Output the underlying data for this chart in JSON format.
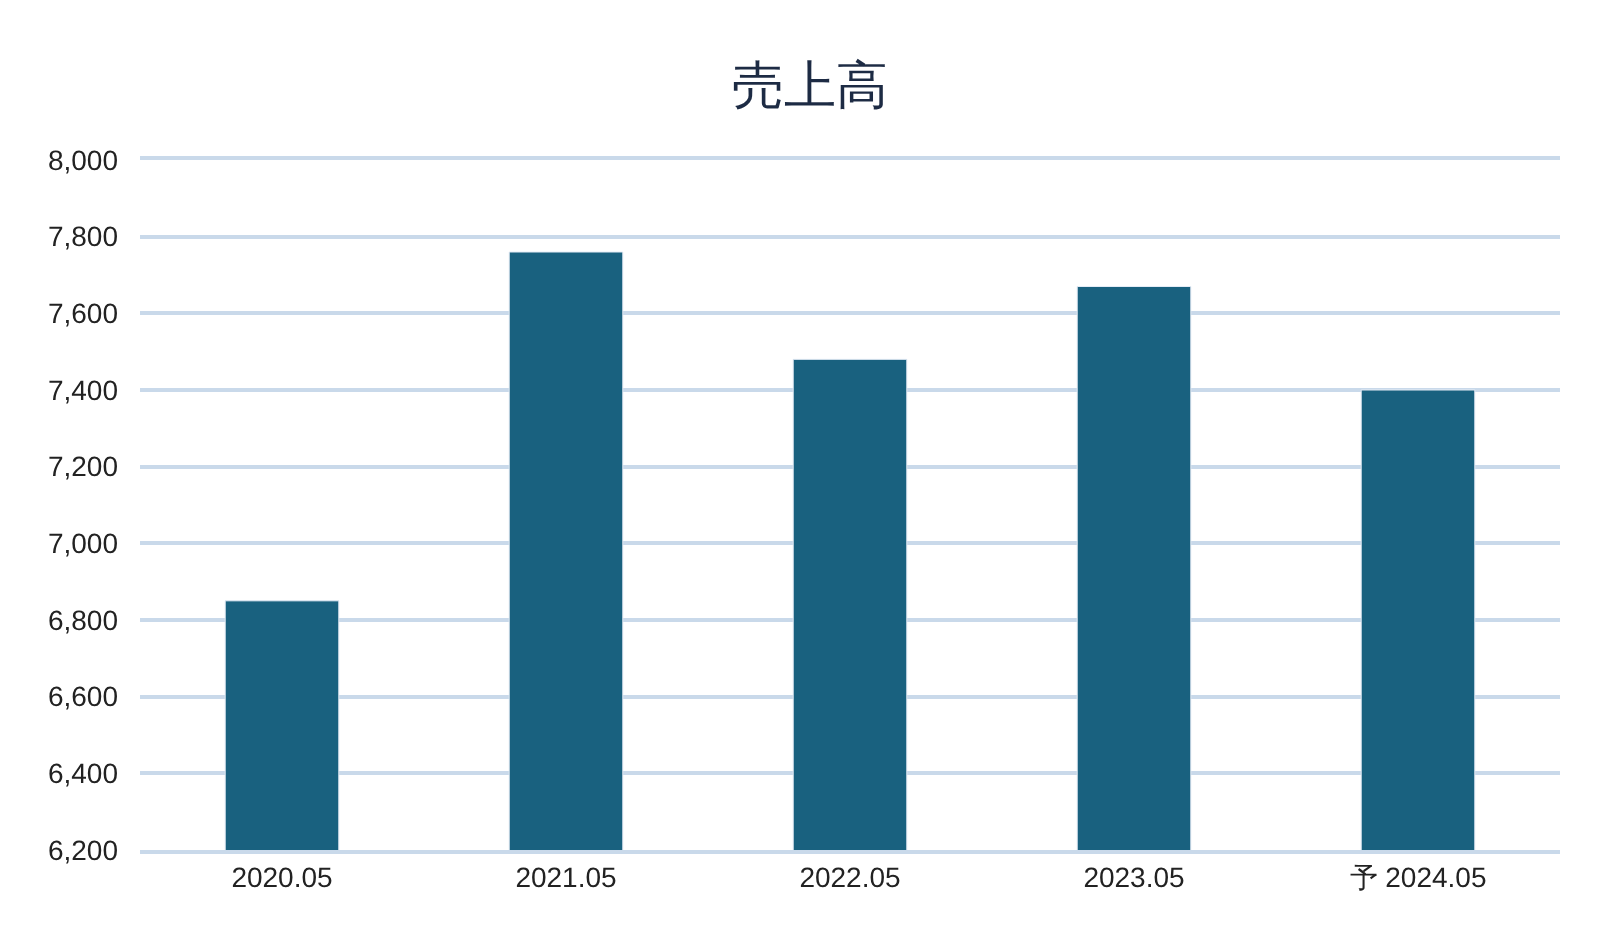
{
  "chart_data": {
    "type": "bar",
    "title": "売上高",
    "categories": [
      "2020.05",
      "2021.05",
      "2022.05",
      "2023.05",
      "予 2024.05"
    ],
    "values": [
      6850,
      7760,
      7480,
      7670,
      7400
    ],
    "color": "#19617f",
    "ylim": [
      6200,
      8000
    ],
    "yticks": [
      {
        "value": 6200,
        "label": "6,200"
      },
      {
        "value": 6400,
        "label": "6,400"
      },
      {
        "value": 6600,
        "label": "6,600"
      },
      {
        "value": 6800,
        "label": "6,800"
      },
      {
        "value": 7000,
        "label": "7,000"
      },
      {
        "value": 7200,
        "label": "7,200"
      },
      {
        "value": 7400,
        "label": "7,400"
      },
      {
        "value": 7600,
        "label": "7,600"
      },
      {
        "value": 7800,
        "label": "7,800"
      },
      {
        "value": 8000,
        "label": "8,000"
      }
    ],
    "grid": "y"
  }
}
